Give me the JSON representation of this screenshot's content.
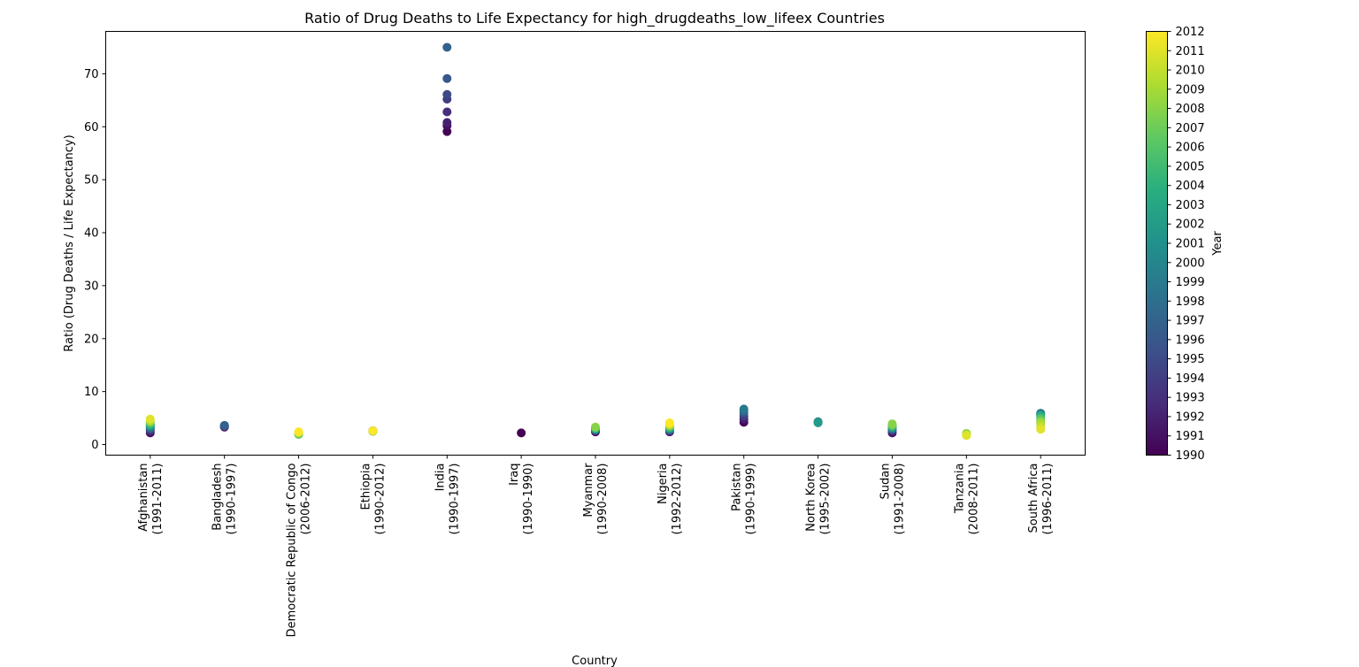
{
  "chart_data": {
    "type": "scatter",
    "title": "Ratio of Drug Deaths to Life Expectancy for high_drugdeaths_low_lifeex Countries",
    "xlabel": "Country",
    "ylabel": "Ratio (Drug Deaths / Life Expectancy)",
    "ylim": [
      -2,
      78
    ],
    "yticks": [
      0,
      10,
      20,
      30,
      40,
      50,
      60,
      70
    ],
    "grid": false,
    "categories": [
      {
        "name": "Afghanistan",
        "range": "(1991-2011)"
      },
      {
        "name": "Bangladesh",
        "range": "(1990-1997)"
      },
      {
        "name": "Democratic Republic of Congo",
        "range": "(2006-2012)"
      },
      {
        "name": "Ethiopia",
        "range": "(1990-2012)"
      },
      {
        "name": "India",
        "range": "(1990-1997)"
      },
      {
        "name": "Iraq",
        "range": "(1990-1990)"
      },
      {
        "name": "Myanmar",
        "range": "(1990-2008)"
      },
      {
        "name": "Nigeria",
        "range": "(1992-2012)"
      },
      {
        "name": "Pakistan",
        "range": "(1990-1999)"
      },
      {
        "name": "North Korea",
        "range": "(1995-2002)"
      },
      {
        "name": "Sudan",
        "range": "(1991-2008)"
      },
      {
        "name": "Tanzania",
        "range": "(2008-2011)"
      },
      {
        "name": "South Africa",
        "range": "(1996-2011)"
      }
    ],
    "points": [
      {
        "c": 0,
        "year": 1991,
        "y": 2.2
      },
      {
        "c": 0,
        "year": 1993,
        "y": 2.6
      },
      {
        "c": 0,
        "year": 1995,
        "y": 2.9
      },
      {
        "c": 0,
        "year": 1997,
        "y": 3.1
      },
      {
        "c": 0,
        "year": 1999,
        "y": 3.3
      },
      {
        "c": 0,
        "year": 2001,
        "y": 3.5
      },
      {
        "c": 0,
        "year": 2003,
        "y": 3.7
      },
      {
        "c": 0,
        "year": 2005,
        "y": 3.9
      },
      {
        "c": 0,
        "year": 2007,
        "y": 4.2
      },
      {
        "c": 0,
        "year": 2009,
        "y": 4.4
      },
      {
        "c": 0,
        "year": 2011,
        "y": 4.8
      },
      {
        "c": 1,
        "year": 1990,
        "y": 3.3
      },
      {
        "c": 1,
        "year": 1992,
        "y": 3.4
      },
      {
        "c": 1,
        "year": 1994,
        "y": 3.5
      },
      {
        "c": 1,
        "year": 1996,
        "y": 3.6
      },
      {
        "c": 1,
        "year": 1997,
        "y": 3.6
      },
      {
        "c": 2,
        "year": 2006,
        "y": 1.9
      },
      {
        "c": 2,
        "year": 2008,
        "y": 2.1
      },
      {
        "c": 2,
        "year": 2010,
        "y": 2.3
      },
      {
        "c": 2,
        "year": 2012,
        "y": 2.4
      },
      {
        "c": 3,
        "year": 1990,
        "y": 2.6
      },
      {
        "c": 3,
        "year": 1996,
        "y": 2.5
      },
      {
        "c": 3,
        "year": 2002,
        "y": 2.6
      },
      {
        "c": 3,
        "year": 2008,
        "y": 2.5
      },
      {
        "c": 3,
        "year": 2012,
        "y": 2.6
      },
      {
        "c": 4,
        "year": 1990,
        "y": 59.1
      },
      {
        "c": 4,
        "year": 1991,
        "y": 60.2
      },
      {
        "c": 4,
        "year": 1992,
        "y": 60.8
      },
      {
        "c": 4,
        "year": 1993,
        "y": 62.8
      },
      {
        "c": 4,
        "year": 1994,
        "y": 65.2
      },
      {
        "c": 4,
        "year": 1995,
        "y": 66.1
      },
      {
        "c": 4,
        "year": 1996,
        "y": 69.1
      },
      {
        "c": 4,
        "year": 1997,
        "y": 75.0
      },
      {
        "c": 5,
        "year": 1990,
        "y": 2.2
      },
      {
        "c": 6,
        "year": 1990,
        "y": 2.4
      },
      {
        "c": 6,
        "year": 1994,
        "y": 2.6
      },
      {
        "c": 6,
        "year": 1998,
        "y": 2.8
      },
      {
        "c": 6,
        "year": 2002,
        "y": 2.9
      },
      {
        "c": 6,
        "year": 2005,
        "y": 3.1
      },
      {
        "c": 6,
        "year": 2008,
        "y": 3.3
      },
      {
        "c": 7,
        "year": 1992,
        "y": 2.4
      },
      {
        "c": 7,
        "year": 1997,
        "y": 2.7
      },
      {
        "c": 7,
        "year": 2002,
        "y": 3.0
      },
      {
        "c": 7,
        "year": 2006,
        "y": 3.3
      },
      {
        "c": 7,
        "year": 2009,
        "y": 3.6
      },
      {
        "c": 7,
        "year": 2011,
        "y": 3.9
      },
      {
        "c": 7,
        "year": 2012,
        "y": 4.1
      },
      {
        "c": 8,
        "year": 1990,
        "y": 4.2
      },
      {
        "c": 8,
        "year": 1992,
        "y": 4.8
      },
      {
        "c": 8,
        "year": 1994,
        "y": 5.4
      },
      {
        "c": 8,
        "year": 1996,
        "y": 6.0
      },
      {
        "c": 8,
        "year": 1998,
        "y": 6.4
      },
      {
        "c": 8,
        "year": 1999,
        "y": 6.7
      },
      {
        "c": 9,
        "year": 1995,
        "y": 4.2
      },
      {
        "c": 9,
        "year": 1998,
        "y": 4.3
      },
      {
        "c": 9,
        "year": 2000,
        "y": 4.2
      },
      {
        "c": 9,
        "year": 2002,
        "y": 4.1
      },
      {
        "c": 10,
        "year": 1991,
        "y": 2.2
      },
      {
        "c": 10,
        "year": 1994,
        "y": 2.6
      },
      {
        "c": 10,
        "year": 1997,
        "y": 2.9
      },
      {
        "c": 10,
        "year": 2000,
        "y": 3.1
      },
      {
        "c": 10,
        "year": 2003,
        "y": 3.3
      },
      {
        "c": 10,
        "year": 2005,
        "y": 3.5
      },
      {
        "c": 10,
        "year": 2007,
        "y": 3.7
      },
      {
        "c": 10,
        "year": 2008,
        "y": 3.9
      },
      {
        "c": 11,
        "year": 2008,
        "y": 2.1
      },
      {
        "c": 11,
        "year": 2009,
        "y": 1.9
      },
      {
        "c": 11,
        "year": 2010,
        "y": 1.8
      },
      {
        "c": 11,
        "year": 2011,
        "y": 1.7
      },
      {
        "c": 12,
        "year": 1996,
        "y": 5.9
      },
      {
        "c": 12,
        "year": 1999,
        "y": 5.9
      },
      {
        "c": 12,
        "year": 2002,
        "y": 5.6
      },
      {
        "c": 12,
        "year": 2004,
        "y": 5.3
      },
      {
        "c": 12,
        "year": 2006,
        "y": 4.9
      },
      {
        "c": 12,
        "year": 2008,
        "y": 4.4
      },
      {
        "c": 12,
        "year": 2009,
        "y": 4.0
      },
      {
        "c": 12,
        "year": 2010,
        "y": 3.5
      },
      {
        "c": 12,
        "year": 2011,
        "y": 2.9
      }
    ],
    "colorbar": {
      "label": "Year",
      "colormap": "viridis",
      "min": 1990,
      "max": 2012,
      "ticks": [
        1990,
        1991,
        1992,
        1993,
        1994,
        1995,
        1996,
        1997,
        1998,
        1999,
        2000,
        2001,
        2002,
        2003,
        2004,
        2005,
        2006,
        2007,
        2008,
        2009,
        2010,
        2011,
        2012
      ]
    }
  }
}
